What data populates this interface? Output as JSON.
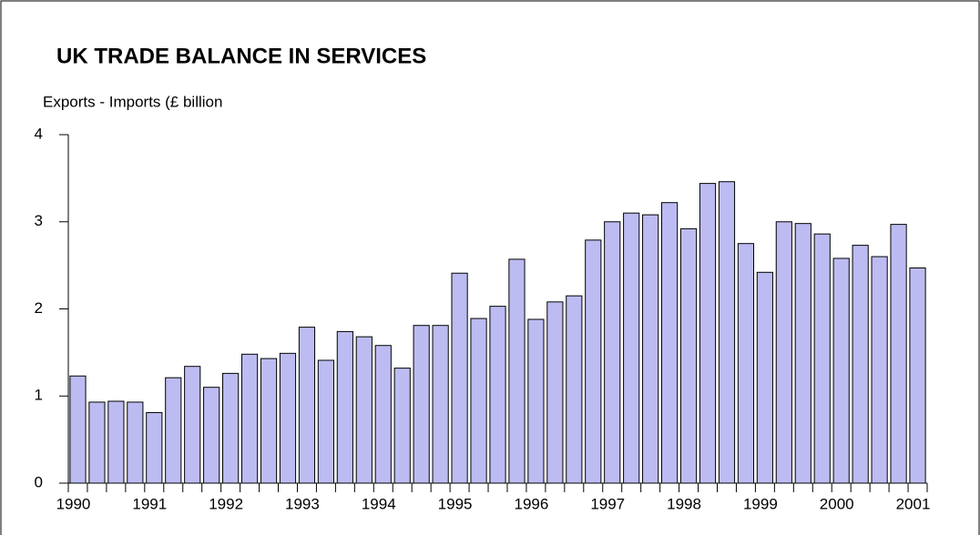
{
  "chart_data": {
    "type": "bar",
    "title": "UK TRADE BALANCE IN SERVICES",
    "subtitle": "Exports - Imports (£ billion",
    "categories": [
      "1990",
      null,
      null,
      null,
      "1991",
      null,
      null,
      null,
      "1992",
      null,
      null,
      null,
      "1993",
      null,
      null,
      null,
      "1994",
      null,
      null,
      null,
      "1995",
      null,
      null,
      null,
      "1996",
      null,
      null,
      null,
      "1997",
      null,
      null,
      null,
      "1998",
      null,
      null,
      null,
      "1999",
      null,
      null,
      null,
      "2000",
      null,
      null,
      null,
      "2001"
    ],
    "values": [
      1.23,
      0.93,
      0.94,
      0.93,
      0.81,
      1.21,
      1.34,
      1.1,
      1.26,
      1.48,
      1.43,
      1.49,
      1.79,
      1.41,
      1.74,
      1.68,
      1.58,
      1.32,
      1.81,
      1.81,
      2.41,
      1.89,
      2.03,
      2.57,
      1.88,
      2.08,
      2.15,
      2.79,
      3.0,
      3.1,
      3.08,
      3.22,
      2.92,
      3.44,
      3.46,
      2.75,
      2.42,
      3.0,
      2.98,
      2.86,
      2.58,
      2.73,
      2.6,
      2.97,
      2.47
    ],
    "color": "#bcbcf2",
    "ylim": [
      0,
      4
    ],
    "yticks": [
      0,
      1,
      2,
      3,
      4
    ],
    "grid": false
  }
}
